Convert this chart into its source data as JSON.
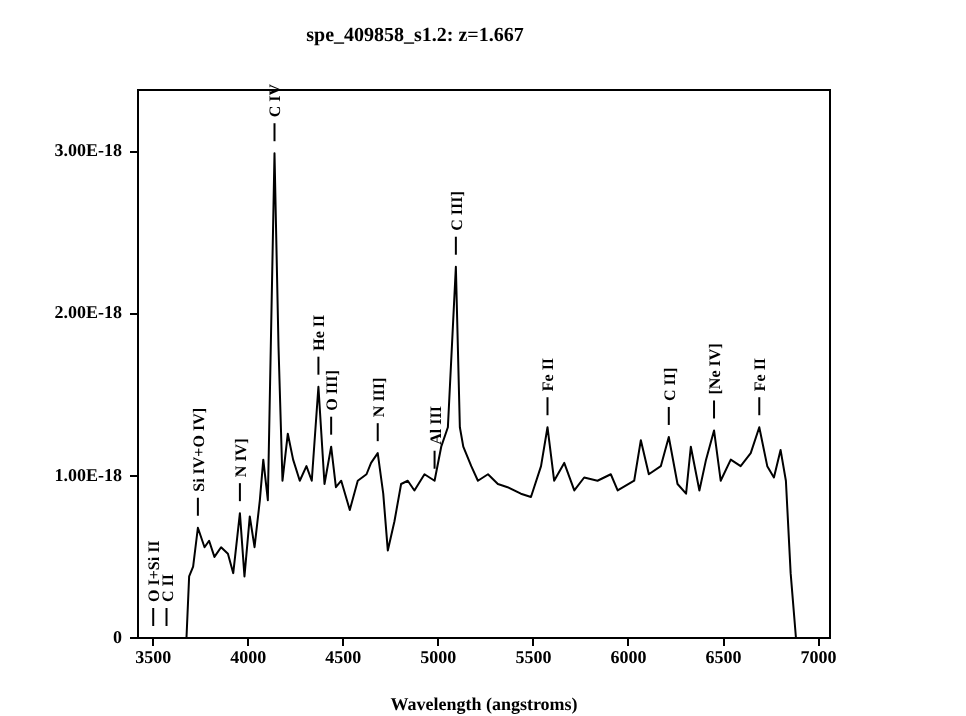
{
  "chart_data": {
    "type": "line",
    "title": "spe_409858_s1.2: z=1.667",
    "xlabel": "Wavelength (angstroms)",
    "x": [
      3430,
      3675,
      3689,
      3710,
      3735,
      3770,
      3794,
      3822,
      3857,
      3893,
      3921,
      3956,
      3980,
      4008,
      4033,
      4061,
      4079,
      4103,
      4138,
      4159,
      4180,
      4208,
      4236,
      4271,
      4306,
      4334,
      4369,
      4401,
      4436,
      4461,
      4489,
      4534,
      4576,
      4622,
      4646,
      4681,
      4710,
      4734,
      4769,
      4804,
      4839,
      4874,
      4927,
      4980,
      5015,
      5050,
      5092,
      5113,
      5131,
      5173,
      5208,
      5261,
      5313,
      5364,
      5434,
      5487,
      5540,
      5574,
      5609,
      5662,
      5715,
      5767,
      5837,
      5907,
      5943,
      6030,
      6065,
      6107,
      6170,
      6212,
      6258,
      6303,
      6328,
      6373,
      6408,
      6450,
      6485,
      6538,
      6590,
      6643,
      6688,
      6730,
      6765,
      6800,
      6828,
      6853,
      6881,
      6975
    ],
    "values": [
      0,
      0,
      3.8e-19,
      4.4e-19,
      6.8e-19,
      5.6e-19,
      6e-19,
      5e-19,
      5.6e-19,
      5.2e-19,
      4e-19,
      7.7e-19,
      3.8e-19,
      7.5e-19,
      5.6e-19,
      8.5e-19,
      1.1e-18,
      8.5e-19,
      2.99e-18,
      1.8e-18,
      9.7e-19,
      1.26e-18,
      1.1e-18,
      9.7e-19,
      1.06e-18,
      9.7e-19,
      1.55e-18,
      9.5e-19,
      1.18e-18,
      9.3e-19,
      9.7e-19,
      7.9e-19,
      9.7e-19,
      1.01e-18,
      1.08e-18,
      1.14e-18,
      8.9e-19,
      5.4e-19,
      7.2e-19,
      9.5e-19,
      9.7e-19,
      9.1e-19,
      1.01e-18,
      9.7e-19,
      1.18e-18,
      1.3e-18,
      2.29e-18,
      1.3e-18,
      1.18e-18,
      1.06e-18,
      9.7e-19,
      1.01e-18,
      9.5e-19,
      9.3e-19,
      8.9e-19,
      8.7e-19,
      1.06e-18,
      1.3e-18,
      9.7e-19,
      1.08e-18,
      9.1e-19,
      9.9e-19,
      9.7e-19,
      1.01e-18,
      9.1e-19,
      9.7e-19,
      1.22e-18,
      1.01e-18,
      1.06e-18,
      1.24e-18,
      9.5e-19,
      8.9e-19,
      1.18e-18,
      9.1e-19,
      1.1e-18,
      1.28e-18,
      9.7e-19,
      1.1e-18,
      1.06e-18,
      1.14e-18,
      1.3e-18,
      1.06e-18,
      9.9e-19,
      1.16e-18,
      9.7e-19,
      4e-19,
      0,
      0
    ],
    "color": "#000000",
    "marker": "none",
    "line_style": "solid",
    "grid": false,
    "xlim": [
      3420,
      7060
    ],
    "xticks": [
      3500,
      4000,
      4500,
      5000,
      5500,
      6000,
      6500,
      7000
    ],
    "ylim": [
      0,
      3.38e-18
    ],
    "yticks": [
      0,
      {
        "value": 1e-18,
        "label": "1.00E-18"
      },
      {
        "value": 2e-18,
        "label": "2.00E-18"
      },
      {
        "value": 3e-18,
        "label": "3.00E-18"
      }
    ],
    "annotations": [
      {
        "text": "O I+Si II",
        "x": 3500,
        "y": 0
      },
      {
        "text": "C II",
        "x": 3570,
        "y": 0
      },
      {
        "text": "Si IV+O IV]",
        "x": 3735,
        "y": 6.8e-19
      },
      {
        "text": "N IV]",
        "x": 3956,
        "y": 7.7e-19
      },
      {
        "text": "C IV",
        "x": 4138,
        "y": 2.99e-18
      },
      {
        "text": "He II",
        "x": 4369,
        "y": 1.55e-18
      },
      {
        "text": "O III]",
        "x": 4436,
        "y": 1.18e-18
      },
      {
        "text": "N III]",
        "x": 4681,
        "y": 1.14e-18
      },
      {
        "text": "Al III",
        "x": 4980,
        "y": 9.7e-19
      },
      {
        "text": "C III]",
        "x": 5092,
        "y": 2.29e-18
      },
      {
        "text": "Fe II",
        "x": 5574,
        "y": 1.3e-18
      },
      {
        "text": "C II]",
        "x": 6212,
        "y": 1.24e-18
      },
      {
        "text": "[Ne IV]",
        "x": 6450,
        "y": 1.28e-18
      },
      {
        "text": "Fe II",
        "x": 6688,
        "y": 1.3e-18
      }
    ]
  }
}
